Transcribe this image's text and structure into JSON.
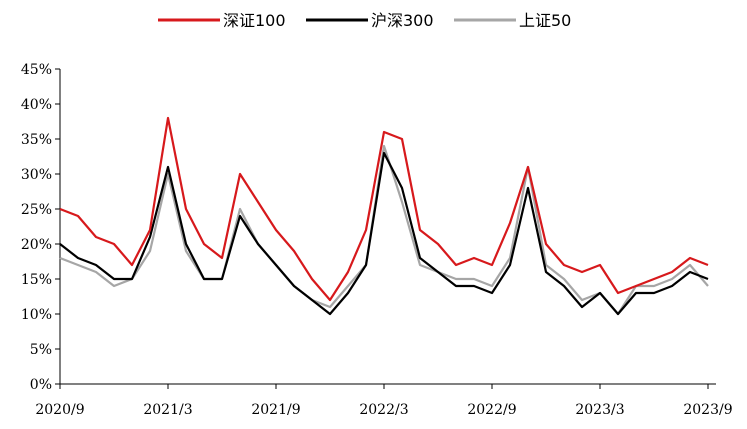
{
  "chart_data": {
    "type": "line",
    "title": "",
    "xlabel": "",
    "ylabel": "",
    "ylim": [
      0,
      45
    ],
    "ytick_values": [
      0,
      5,
      10,
      15,
      20,
      25,
      30,
      35,
      40,
      45
    ],
    "ytick_labels": [
      "0%",
      "5%",
      "10%",
      "15%",
      "20%",
      "25%",
      "30%",
      "35%",
      "40%",
      "45%"
    ],
    "xlim": [
      "2020-09",
      "2023-09"
    ],
    "xtick_values": [
      "2020-09",
      "2021-03",
      "2021-09",
      "2022-03",
      "2022-09",
      "2023-03",
      "2023-09"
    ],
    "xtick_labels": [
      "2020/9",
      "2021/3",
      "2021/9",
      "2022/3",
      "2022/9",
      "2023/3",
      "2023/9"
    ],
    "grid": false,
    "legend_position": "top-center",
    "x": [
      "2020-09",
      "2020-10",
      "2020-11",
      "2020-12",
      "2021-01",
      "2021-02",
      "2021-03",
      "2021-04",
      "2021-05",
      "2021-06",
      "2021-07",
      "2021-08",
      "2021-09",
      "2021-10",
      "2021-11",
      "2021-12",
      "2022-01",
      "2022-02",
      "2022-03",
      "2022-04",
      "2022-05",
      "2022-06",
      "2022-07",
      "2022-08",
      "2022-09",
      "2022-10",
      "2022-11",
      "2022-12",
      "2023-01",
      "2023-02",
      "2023-03",
      "2023-04",
      "2023-05",
      "2023-06",
      "2023-07",
      "2023-08",
      "2023-09"
    ],
    "series": [
      {
        "name": "深证100",
        "color": "#d7191c",
        "width": 2.2,
        "values": [
          25,
          24,
          21,
          20,
          17,
          22,
          38,
          25,
          20,
          18,
          30,
          26,
          22,
          19,
          15,
          12,
          16,
          22,
          36,
          35,
          22,
          20,
          17,
          18,
          17,
          23,
          31,
          20,
          17,
          16,
          17,
          13,
          14,
          15,
          16,
          18,
          17
        ]
      },
      {
        "name": "沪深300",
        "color": "#000000",
        "width": 2.2,
        "values": [
          20,
          18,
          17,
          15,
          15,
          21,
          31,
          20,
          15,
          15,
          24,
          20,
          17,
          14,
          12,
          10,
          13,
          17,
          33,
          28,
          18,
          16,
          14,
          14,
          13,
          17,
          28,
          16,
          14,
          11,
          13,
          10,
          13,
          13,
          14,
          16,
          15
        ]
      },
      {
        "name": "上证50",
        "color": "#a6a6a6",
        "width": 2.2,
        "values": [
          18,
          17,
          16,
          14,
          15,
          19,
          30,
          19,
          15,
          15,
          25,
          20,
          17,
          14,
          12,
          11,
          14,
          17,
          34,
          26,
          17,
          16,
          15,
          15,
          14,
          18,
          31,
          17,
          15,
          12,
          13,
          10,
          14,
          14,
          15,
          17,
          14
        ]
      }
    ]
  }
}
